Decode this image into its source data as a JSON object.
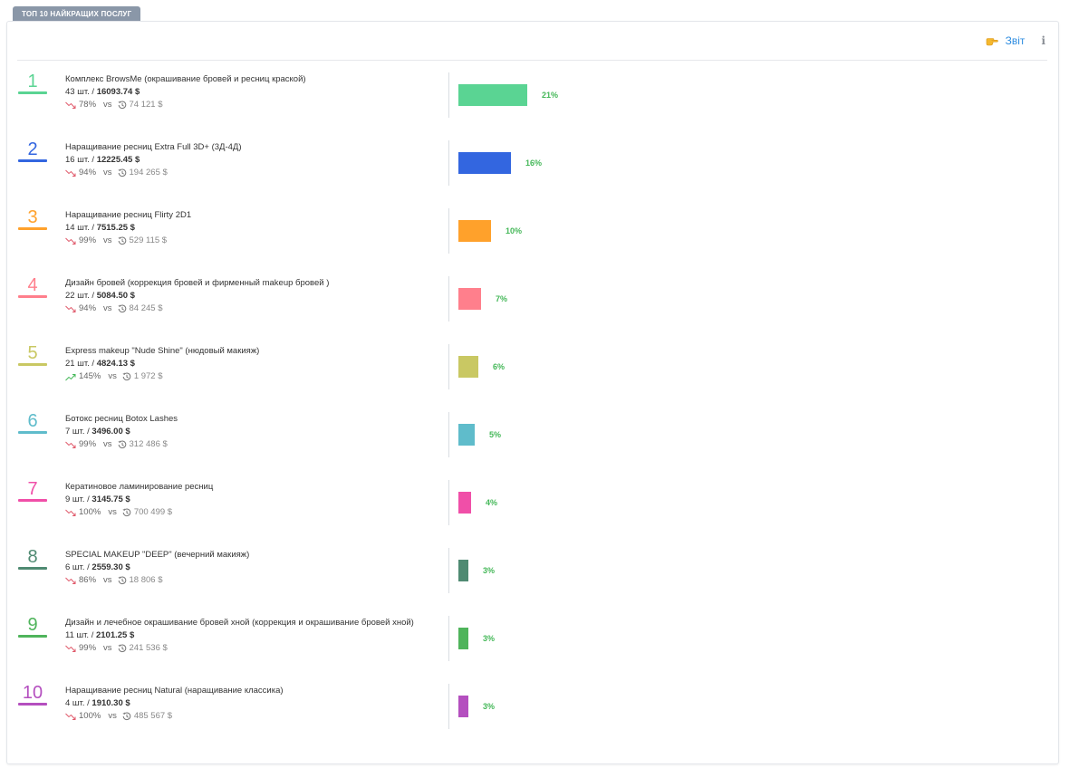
{
  "tab_label": "ТОП 10 НАЙКРАЩИХ ПОСЛУГ",
  "toolbar": {
    "report_label": "Звіт",
    "report_icon": "pointing-hand-icon",
    "info_glyph": "i"
  },
  "colors": {
    "trend_down": "#e05a6b",
    "trend_up": "#45b859",
    "percent": "#45b859"
  },
  "chart_data": {
    "type": "bar",
    "categories": [
      "1",
      "2",
      "3",
      "4",
      "5",
      "6",
      "7",
      "8",
      "9",
      "10"
    ],
    "values": [
      21,
      16,
      10,
      7,
      6,
      5,
      4,
      3,
      3,
      3
    ],
    "unit": "%"
  },
  "services": [
    {
      "rank": "1",
      "color": "#5ad493",
      "name": "Комплекс BrowsMe (окрашивание бровей и ресниц краской)",
      "qty": "43 шт. / ",
      "amount": "16093.74 $",
      "trend": "down",
      "change": "78%",
      "vs": "vs",
      "compare": "74 121 $",
      "percent": "21%",
      "share": 21
    },
    {
      "rank": "2",
      "color": "#3366e0",
      "name": "Наращивание ресниц Extra Full 3D+ (3Д-4Д)",
      "qty": "16 шт. / ",
      "amount": "12225.45 $",
      "trend": "down",
      "change": "94%",
      "vs": "vs",
      "compare": "194 265 $",
      "percent": "16%",
      "share": 16
    },
    {
      "rank": "3",
      "color": "#ffa12b",
      "name": "Наращивание ресниц Flirty 2D1",
      "qty": "14 шт. / ",
      "amount": "7515.25 $",
      "trend": "down",
      "change": "99%",
      "vs": "vs",
      "compare": "529 115 $",
      "percent": "10%",
      "share": 10
    },
    {
      "rank": "4",
      "color": "#ff7f8c",
      "name": "Дизайн бровей (коррекция бровей и фирменный makeup бровей )",
      "qty": "22 шт. / ",
      "amount": "5084.50 $",
      "trend": "down",
      "change": "94%",
      "vs": "vs",
      "compare": "84 245 $",
      "percent": "7%",
      "share": 7
    },
    {
      "rank": "5",
      "color": "#c9c863",
      "name": "Express makeup \"Nude Shine\" (нюдовый макияж)",
      "qty": "21 шт. / ",
      "amount": "4824.13 $",
      "trend": "up",
      "change": "145%",
      "vs": "vs",
      "compare": "1 972 $",
      "percent": "6%",
      "share": 6
    },
    {
      "rank": "6",
      "color": "#5fbccb",
      "name": "Ботокс ресниц Botox Lashes",
      "qty": "7 шт. / ",
      "amount": "3496.00 $",
      "trend": "down",
      "change": "99%",
      "vs": "vs",
      "compare": "312 486 $",
      "percent": "5%",
      "share": 5
    },
    {
      "rank": "7",
      "color": "#f04fa8",
      "name": "Кератиновое ламинирование ресниц",
      "qty": "9 шт. / ",
      "amount": "3145.75 $",
      "trend": "down",
      "change": "100%",
      "vs": "vs",
      "compare": "700 499 $",
      "percent": "4%",
      "share": 4
    },
    {
      "rank": "8",
      "color": "#4f8a72",
      "name": "SPECIAL MAKEUP \"DEEP\" (вечерний макияж)",
      "qty": "6 шт. / ",
      "amount": "2559.30 $",
      "trend": "down",
      "change": "86%",
      "vs": "vs",
      "compare": "18 806 $",
      "percent": "3%",
      "share": 3
    },
    {
      "rank": "9",
      "color": "#4fb45b",
      "name": "Дизайн и лечебное окрашивание бровей хной (коррекция и окрашивание бровей хной)",
      "qty": "11 шт. / ",
      "amount": "2101.25 $",
      "trend": "down",
      "change": "99%",
      "vs": "vs",
      "compare": "241 536 $",
      "percent": "3%",
      "share": 3
    },
    {
      "rank": "10",
      "color": "#b44fbf",
      "name": "Наращивание ресниц Natural (наращивание классика)",
      "qty": "4 шт. / ",
      "amount": "1910.30 $",
      "trend": "down",
      "change": "100%",
      "vs": "vs",
      "compare": "485 567 $",
      "percent": "3%",
      "share": 3
    }
  ]
}
